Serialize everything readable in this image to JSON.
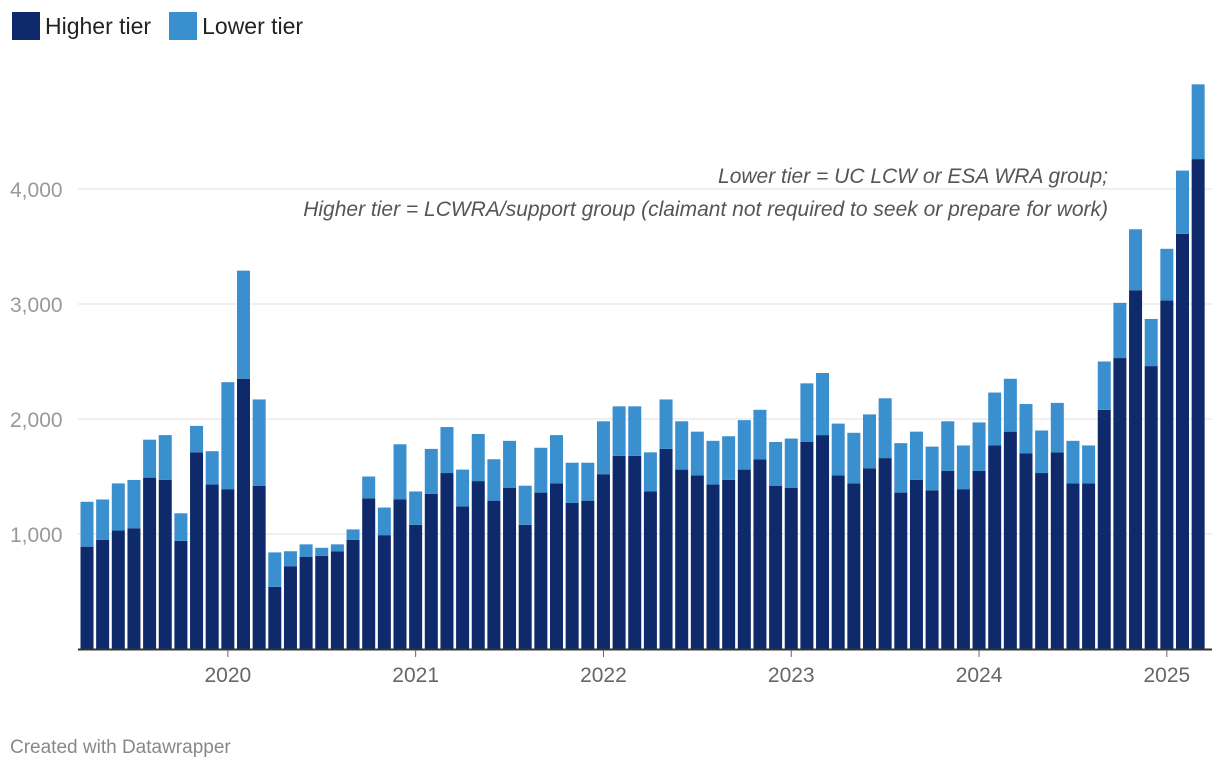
{
  "legend": {
    "higher_label": "Higher tier",
    "lower_label": "Lower tier",
    "higher_color": "#0e2a6b",
    "lower_color": "#3a8fcf"
  },
  "annotation": {
    "line1": "Lower tier = UC LCW or ESA WRA group;",
    "line2": "Higher tier = LCWRA/support group (claimant not required to seek or prepare for work)"
  },
  "footer": {
    "credit": "Created with Datawrapper"
  },
  "chart_data": {
    "type": "bar",
    "stacked": true,
    "title": "",
    "xlabel": "",
    "ylabel": "",
    "ylim": [
      0,
      4900
    ],
    "y_ticks": [
      1000,
      2000,
      3000,
      4000
    ],
    "y_tick_labels": [
      "1,000",
      "2,000",
      "3,000",
      "4,000"
    ],
    "x_tick_labels": [
      {
        "label": "2020",
        "index": 9
      },
      {
        "label": "2021",
        "index": 21
      },
      {
        "label": "2022",
        "index": 33
      },
      {
        "label": "2023",
        "index": 45
      },
      {
        "label": "2024",
        "index": 57
      },
      {
        "label": "2025",
        "index": 69
      }
    ],
    "series": [
      {
        "name": "Higher tier",
        "values": [
          890,
          950,
          1030,
          1050,
          1490,
          1470,
          940,
          1710,
          1430,
          1390,
          2350,
          1420,
          540,
          720,
          800,
          810,
          850,
          950,
          1310,
          990,
          1300,
          1080,
          1350,
          1530,
          1240,
          1460,
          1290,
          1400,
          1080,
          1360,
          1440,
          1270,
          1290,
          1520,
          1680,
          1680,
          1370,
          1740,
          1560,
          1510,
          1430,
          1470,
          1560,
          1650,
          1420,
          1400,
          1800,
          1860,
          1510,
          1440,
          1570,
          1660,
          1360,
          1470,
          1380,
          1550,
          1390,
          1550,
          1770,
          1890,
          1700,
          1530,
          1710,
          1440,
          1440,
          2080,
          2530,
          3120,
          2460,
          3030,
          3610,
          4260
        ]
      },
      {
        "name": "Lower tier",
        "values": [
          390,
          350,
          410,
          420,
          330,
          390,
          240,
          230,
          290,
          930,
          940,
          750,
          300,
          130,
          110,
          70,
          60,
          90,
          190,
          240,
          480,
          290,
          390,
          400,
          320,
          410,
          360,
          410,
          340,
          390,
          420,
          350,
          330,
          460,
          430,
          430,
          340,
          430,
          420,
          380,
          380,
          380,
          430,
          430,
          380,
          430,
          510,
          540,
          450,
          440,
          470,
          520,
          430,
          420,
          380,
          430,
          380,
          420,
          460,
          460,
          430,
          370,
          430,
          370,
          330,
          420,
          480,
          530,
          410,
          450,
          550,
          650
        ]
      }
    ]
  }
}
